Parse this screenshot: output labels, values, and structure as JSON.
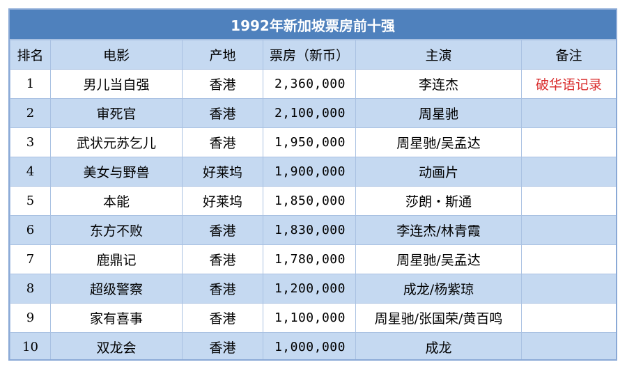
{
  "title": "1992年新加坡票房前十强",
  "headers": {
    "rank": "排名",
    "film": "电影",
    "origin": "产地",
    "box_office": "票房（新币）",
    "cast": "主演",
    "remark": "备注"
  },
  "rows": [
    {
      "rank": "1",
      "film": "男儿当自强",
      "origin": "香港",
      "box_office": "2,360,000",
      "cast": "李连杰",
      "remark": "破华语记录"
    },
    {
      "rank": "2",
      "film": "审死官",
      "origin": "香港",
      "box_office": "2,100,000",
      "cast": "周星驰",
      "remark": ""
    },
    {
      "rank": "3",
      "film": "武状元苏乞儿",
      "origin": "香港",
      "box_office": "1,950,000",
      "cast": "周星驰/吴孟达",
      "remark": ""
    },
    {
      "rank": "4",
      "film": "美女与野兽",
      "origin": "好莱坞",
      "box_office": "1,900,000",
      "cast": "动画片",
      "remark": ""
    },
    {
      "rank": "5",
      "film": "本能",
      "origin": "好莱坞",
      "box_office": "1,850,000",
      "cast": "莎朗・斯通",
      "remark": ""
    },
    {
      "rank": "6",
      "film": "东方不败",
      "origin": "香港",
      "box_office": "1,830,000",
      "cast": "李连杰/林青霞",
      "remark": ""
    },
    {
      "rank": "7",
      "film": "鹿鼎记",
      "origin": "香港",
      "box_office": "1,780,000",
      "cast": "周星驰/吴孟达",
      "remark": ""
    },
    {
      "rank": "8",
      "film": "超级警察",
      "origin": "香港",
      "box_office": "1,200,000",
      "cast": "成龙/杨紫琼",
      "remark": ""
    },
    {
      "rank": "9",
      "film": "家有喜事",
      "origin": "香港",
      "box_office": "1,100,000",
      "cast": "周星驰/张国荣/黄百鸣",
      "remark": ""
    },
    {
      "rank": "10",
      "film": "双龙会",
      "origin": "香港",
      "box_office": "1,000,000",
      "cast": "成龙",
      "remark": ""
    }
  ],
  "colors": {
    "title_bg": "#4f81bd",
    "header_bg": "#c5d9f1",
    "stripe_bg": "#c5d9f1",
    "remark_text": "#d92b2b"
  }
}
